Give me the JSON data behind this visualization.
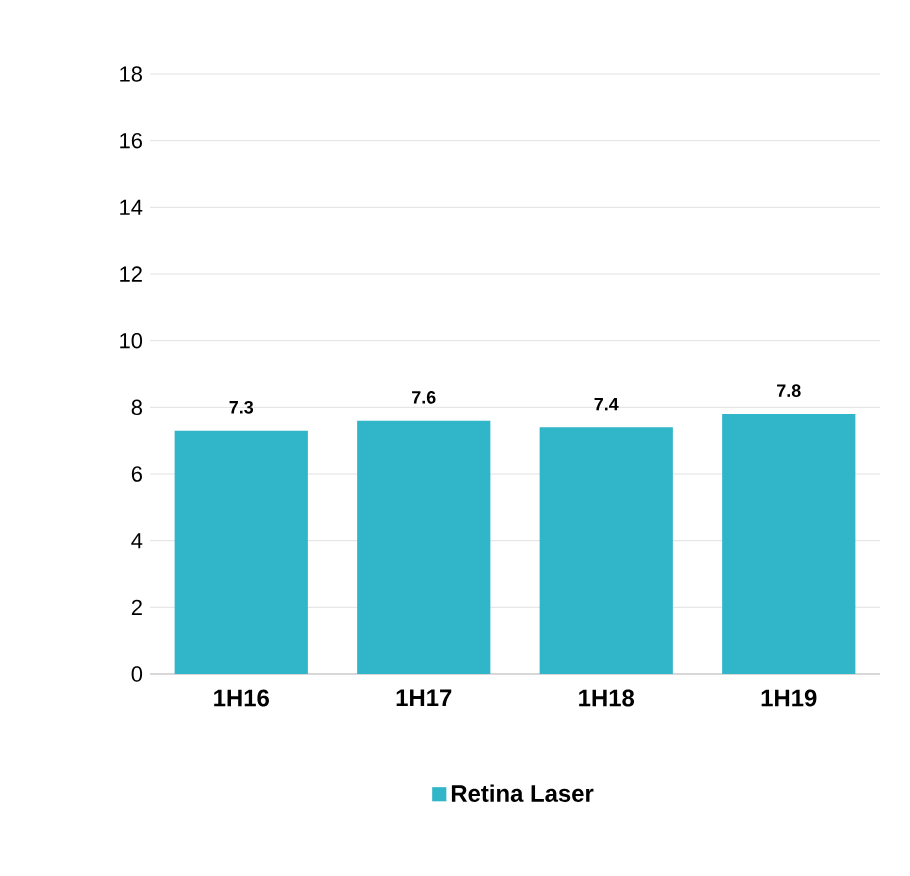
{
  "chart_data": {
    "type": "bar",
    "categories": [
      "1H16",
      "1H17",
      "1H18",
      "1H19"
    ],
    "series": [
      {
        "name": "Retina Laser",
        "color": "#31b5c8",
        "values": [
          7.3,
          7.6,
          7.4,
          7.8
        ]
      }
    ],
    "ylim": [
      0,
      18
    ],
    "yticks": [
      0,
      2,
      4,
      6,
      8,
      10,
      12,
      14,
      16,
      18
    ],
    "grid": "y",
    "legend": "bottom",
    "data_labels": true
  }
}
